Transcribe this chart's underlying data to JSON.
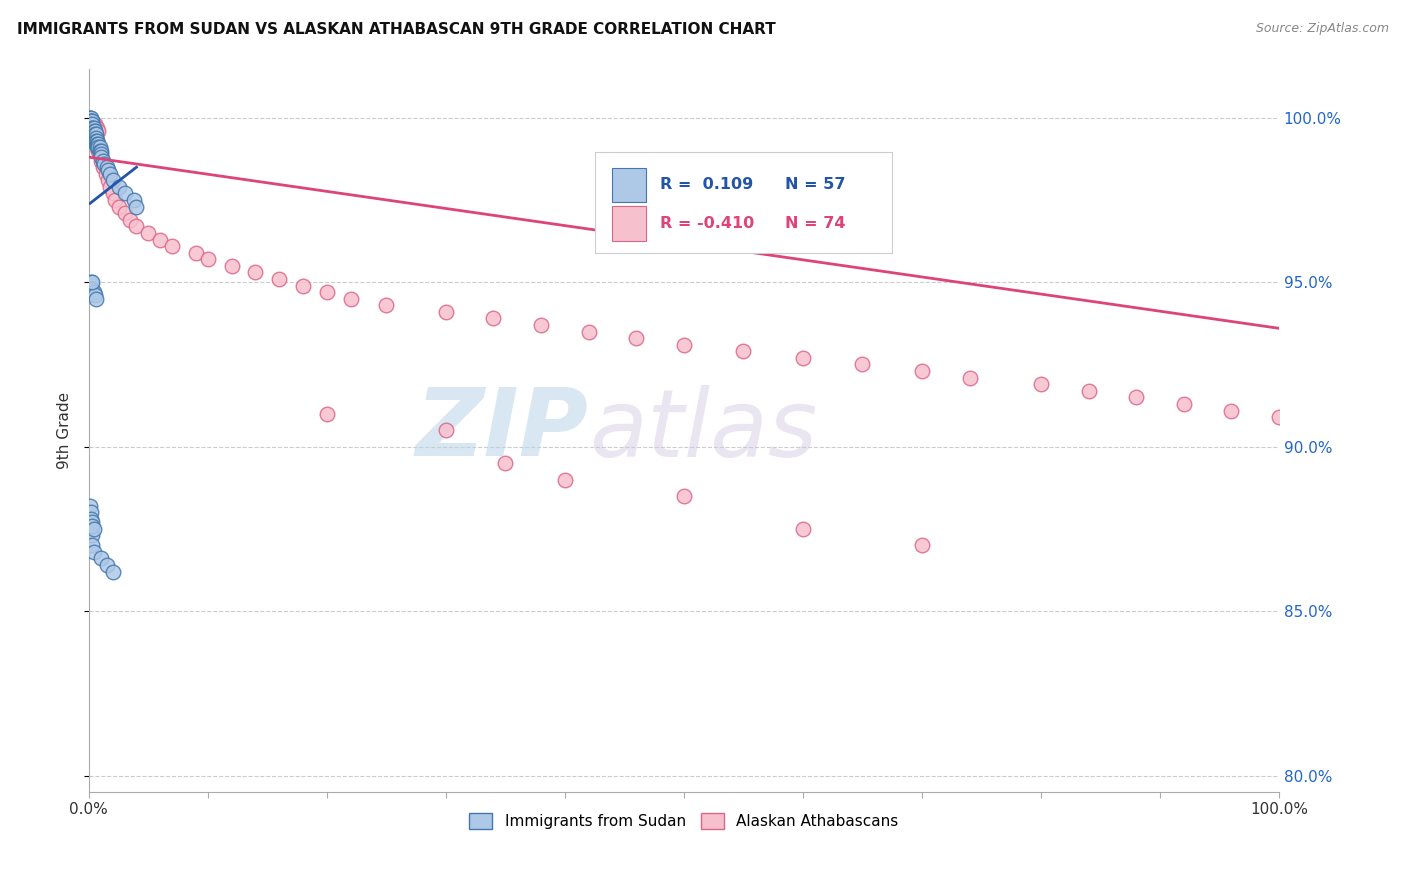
{
  "title": "IMMIGRANTS FROM SUDAN VS ALASKAN ATHABASCAN 9TH GRADE CORRELATION CHART",
  "source": "Source: ZipAtlas.com",
  "ylabel": "9th Grade",
  "xlim": [
    0.0,
    1.0
  ],
  "ylim": [
    0.795,
    1.015
  ],
  "ytick_positions": [
    0.8,
    0.85,
    0.9,
    0.95,
    1.0
  ],
  "ytick_labels": [
    "80.0%",
    "85.0%",
    "90.0%",
    "95.0%",
    "100.0%"
  ],
  "xtick_positions": [
    0.0,
    0.1,
    0.2,
    0.3,
    0.4,
    0.5,
    0.6,
    0.7,
    0.8,
    0.9,
    1.0
  ],
  "xtick_labels": [
    "0.0%",
    "",
    "",
    "",
    "",
    "",
    "",
    "",
    "",
    "",
    "100.0%"
  ],
  "blue_color": "#aec8e8",
  "blue_edge_color": "#4477aa",
  "pink_color": "#f7c0cd",
  "pink_edge_color": "#dd6688",
  "blue_trend_color": "#2255aa",
  "pink_trend_color": "#dd4477",
  "watermark_zip": "ZIP",
  "watermark_atlas": "atlas",
  "background_color": "#ffffff",
  "grid_color": "#cccccc",
  "blue_scatter_x": [
    0.001,
    0.001,
    0.001,
    0.001,
    0.002,
    0.002,
    0.002,
    0.002,
    0.002,
    0.002,
    0.003,
    0.003,
    0.003,
    0.003,
    0.003,
    0.003,
    0.003,
    0.003,
    0.004,
    0.004,
    0.004,
    0.004,
    0.004,
    0.005,
    0.005,
    0.005,
    0.005,
    0.006,
    0.006,
    0.006,
    0.007,
    0.007,
    0.007,
    0.008,
    0.008,
    0.009,
    0.009,
    0.01,
    0.01,
    0.01,
    0.012,
    0.013,
    0.015,
    0.016,
    0.018,
    0.02,
    0.025,
    0.03,
    0.038,
    0.04,
    0.002,
    0.003,
    0.004,
    0.005,
    0.006
  ],
  "blue_scatter_y": [
    1.0,
    1.0,
    0.999,
    0.999,
    1.0,
    0.999,
    0.999,
    0.998,
    0.998,
    0.997,
    0.999,
    0.998,
    0.997,
    0.997,
    0.996,
    0.995,
    0.994,
    0.993,
    0.997,
    0.996,
    0.995,
    0.994,
    0.993,
    0.996,
    0.995,
    0.994,
    0.993,
    0.995,
    0.994,
    0.993,
    0.993,
    0.992,
    0.991,
    0.992,
    0.991,
    0.991,
    0.99,
    0.99,
    0.989,
    0.988,
    0.987,
    0.986,
    0.985,
    0.984,
    0.983,
    0.981,
    0.979,
    0.977,
    0.975,
    0.973,
    0.95,
    0.948,
    0.947,
    0.946,
    0.945
  ],
  "blue_outlier_x": [
    0.003,
    0.003,
    0.004,
    0.01,
    0.015,
    0.02
  ],
  "blue_outlier_y": [
    0.873,
    0.87,
    0.868,
    0.866,
    0.864,
    0.862
  ],
  "blue_low_x": [
    0.001,
    0.002,
    0.002,
    0.003,
    0.003,
    0.004
  ],
  "blue_low_y": [
    0.882,
    0.88,
    0.878,
    0.877,
    0.876,
    0.875
  ],
  "blue_single_x": [
    0.003
  ],
  "blue_single_y": [
    0.95
  ],
  "pink_scatter_x": [
    0.001,
    0.002,
    0.002,
    0.003,
    0.003,
    0.003,
    0.004,
    0.004,
    0.005,
    0.005,
    0.006,
    0.006,
    0.007,
    0.007,
    0.008,
    0.008,
    0.009,
    0.01,
    0.01,
    0.012,
    0.014,
    0.016,
    0.018,
    0.02,
    0.022,
    0.025,
    0.03,
    0.035,
    0.04,
    0.05,
    0.06,
    0.07,
    0.09,
    0.1,
    0.12,
    0.14,
    0.16,
    0.18,
    0.2,
    0.22,
    0.25,
    0.3,
    0.34,
    0.38,
    0.42,
    0.46,
    0.5,
    0.55,
    0.6,
    0.65,
    0.7,
    0.74,
    0.8,
    0.84,
    0.88,
    0.92,
    0.96,
    1.0,
    0.002,
    0.003,
    0.004,
    0.005,
    0.006,
    0.007,
    0.008,
    0.2,
    0.3,
    0.35,
    0.4,
    0.5,
    0.6,
    0.7
  ],
  "pink_scatter_y": [
    0.999,
    0.998,
    0.997,
    0.998,
    0.997,
    0.996,
    0.997,
    0.996,
    0.995,
    0.994,
    0.994,
    0.993,
    0.993,
    0.992,
    0.991,
    0.99,
    0.989,
    0.988,
    0.987,
    0.985,
    0.983,
    0.981,
    0.979,
    0.977,
    0.975,
    0.973,
    0.971,
    0.969,
    0.967,
    0.965,
    0.963,
    0.961,
    0.959,
    0.957,
    0.955,
    0.953,
    0.951,
    0.949,
    0.947,
    0.945,
    0.943,
    0.941,
    0.939,
    0.937,
    0.935,
    0.933,
    0.931,
    0.929,
    0.927,
    0.925,
    0.923,
    0.921,
    0.919,
    0.917,
    0.915,
    0.913,
    0.911,
    0.909,
    0.999,
    0.999,
    0.998,
    0.998,
    0.997,
    0.997,
    0.996,
    0.91,
    0.905,
    0.895,
    0.89,
    0.885,
    0.875,
    0.87
  ],
  "blue_trend_x": [
    0.001,
    0.04
  ],
  "blue_trend_y": [
    0.974,
    0.985
  ],
  "pink_trend_x": [
    0.001,
    1.0
  ],
  "pink_trend_y": [
    0.988,
    0.936
  ]
}
